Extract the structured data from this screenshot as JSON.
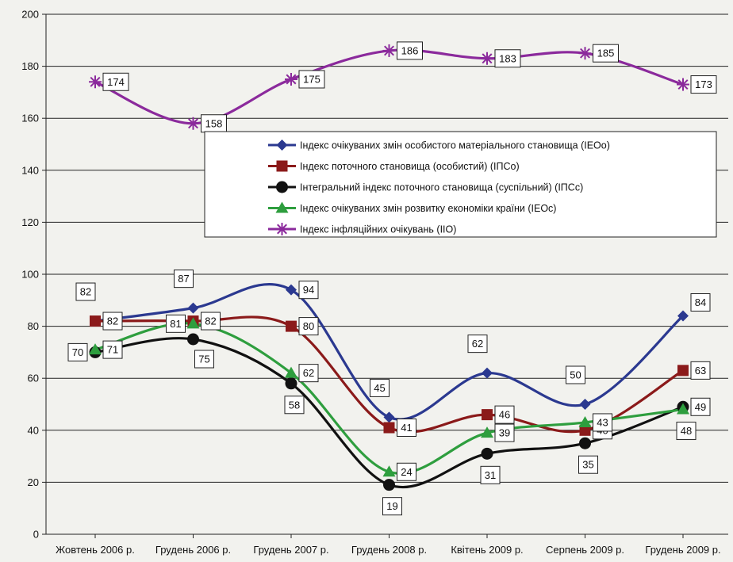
{
  "chart_data": {
    "type": "line",
    "title": "",
    "xlabel": "",
    "ylabel": "",
    "ylim": [
      0,
      200
    ],
    "yticks": [
      0,
      20,
      40,
      60,
      80,
      100,
      120,
      140,
      160,
      180,
      200
    ],
    "grid": true,
    "legend_position": "inside-upper-right",
    "categories": [
      "Жовтень 2006 р.",
      "Грудень 2006 р.",
      "Грудень 2007 р.",
      "Грудень 2008 р.",
      "Квітень 2009 р.",
      "Серпень 2009 р.",
      "Грудень 2009 р."
    ],
    "series": [
      {
        "key": "ieoo",
        "name": "Індекс очікуваних змін особистого матеріального становища (ІЕОо)",
        "color": "#2b3990",
        "marker": "diamond",
        "values": [
          82,
          87,
          94,
          45,
          62,
          50,
          84
        ],
        "label_pos": [
          "above",
          "above",
          "right",
          "above",
          "above",
          "above",
          "above-right"
        ]
      },
      {
        "key": "ipso",
        "name": "Індекс поточного становища (особистий) (ІПСо)",
        "color": "#8b1a1a",
        "marker": "square",
        "values": [
          82,
          82,
          80,
          41,
          46,
          40,
          63
        ],
        "label_pos": [
          "right",
          "right",
          "right",
          "right",
          "right",
          "right",
          "right"
        ]
      },
      {
        "key": "ipss",
        "name": "Інтегральний індекс поточного становища (суспільний) (ІПСс)",
        "color": "#111111",
        "marker": "circle",
        "values": [
          70,
          75,
          58,
          19,
          31,
          35,
          49
        ],
        "label_pos": [
          "left",
          "below-right",
          "below",
          "below",
          "below",
          "below",
          "right"
        ]
      },
      {
        "key": "ieoc",
        "name": "Індекс очікуваних змін розвитку економіки країни (ІЕОс)",
        "color": "#2e9e3e",
        "marker": "triangle",
        "values": [
          71,
          81,
          62,
          24,
          39,
          43,
          48
        ],
        "label_pos": [
          "right",
          "left",
          "right",
          "right",
          "right",
          "right",
          "below"
        ]
      },
      {
        "key": "iio",
        "name": "Індекс інфляційних очікувань (ІІО)",
        "color": "#8b2a9c",
        "marker": "star",
        "values": [
          174,
          158,
          175,
          186,
          183,
          185,
          173
        ],
        "label_pos": [
          "right",
          "right",
          "right",
          "right",
          "right",
          "right",
          "right"
        ]
      }
    ]
  }
}
